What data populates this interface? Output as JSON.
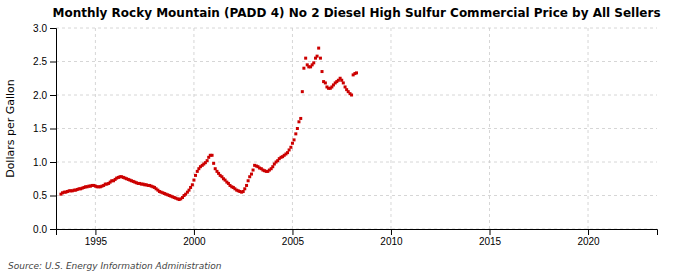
{
  "chart_data": {
    "type": "scatter",
    "title": "Monthly Rocky Mountain (PADD 4) No 2 Diesel High Sulfur Commercial Price by All Sellers",
    "ylabel": "Dollars per Gallon",
    "annotations": [
      "Source: U.S. Energy Information Administration"
    ],
    "color": "#cc0000",
    "marker": "square",
    "grid": true,
    "xlim": [
      1993,
      2023.5
    ],
    "ylim": [
      0,
      3
    ],
    "xticks": [
      1995,
      2000,
      2005,
      2010,
      2015,
      2020
    ],
    "yticks": [
      {
        "value": 0,
        "label": "0.0"
      },
      0.5,
      {
        "value": 1,
        "label": "1.0"
      },
      1.5,
      {
        "value": 2,
        "label": "2.0"
      },
      2.5,
      {
        "value": 3,
        "label": "3.0"
      }
    ],
    "x": [
      1993.25,
      1993.33,
      1993.42,
      1993.5,
      1993.58,
      1993.67,
      1993.75,
      1993.83,
      1993.92,
      1994,
      1994.08,
      1994.17,
      1994.25,
      1994.33,
      1994.42,
      1994.5,
      1994.58,
      1994.67,
      1994.75,
      1994.83,
      1994.92,
      1995,
      1995.08,
      1995.17,
      1995.25,
      1995.33,
      1995.42,
      1995.5,
      1995.58,
      1995.67,
      1995.75,
      1995.83,
      1995.92,
      1996,
      1996.08,
      1996.17,
      1996.25,
      1996.33,
      1996.42,
      1996.5,
      1996.58,
      1996.67,
      1996.75,
      1996.83,
      1996.92,
      1997,
      1997.08,
      1997.17,
      1997.25,
      1997.33,
      1997.42,
      1997.5,
      1997.58,
      1997.67,
      1997.75,
      1997.83,
      1997.92,
      1998,
      1998.08,
      1998.17,
      1998.25,
      1998.33,
      1998.42,
      1998.5,
      1998.58,
      1998.67,
      1998.75,
      1998.83,
      1998.92,
      1999,
      1999.08,
      1999.17,
      1999.25,
      1999.33,
      1999.42,
      1999.5,
      1999.58,
      1999.67,
      1999.75,
      1999.83,
      1999.92,
      2000,
      2000.08,
      2000.17,
      2000.25,
      2000.33,
      2000.42,
      2000.5,
      2000.58,
      2000.67,
      2000.75,
      2000.83,
      2000.92,
      2001,
      2001.08,
      2001.17,
      2001.25,
      2001.33,
      2001.42,
      2001.5,
      2001.58,
      2001.67,
      2001.75,
      2001.83,
      2001.92,
      2002,
      2002.08,
      2002.17,
      2002.25,
      2002.33,
      2002.42,
      2002.5,
      2002.58,
      2002.67,
      2002.75,
      2002.83,
      2002.92,
      2003,
      2003.08,
      2003.17,
      2003.25,
      2003.33,
      2003.42,
      2003.5,
      2003.58,
      2003.67,
      2003.75,
      2003.83,
      2003.92,
      2004,
      2004.08,
      2004.17,
      2004.25,
      2004.33,
      2004.42,
      2004.5,
      2004.58,
      2004.67,
      2004.75,
      2004.83,
      2004.92,
      2005,
      2005.08,
      2005.17,
      2005.25,
      2005.33,
      2005.42,
      2005.5,
      2005.58,
      2005.67,
      2005.75,
      2005.83,
      2005.92,
      2006,
      2006.08,
      2006.17,
      2006.25,
      2006.33,
      2006.42,
      2006.5,
      2006.58,
      2006.67,
      2006.75,
      2006.83,
      2006.92,
      2007,
      2007.08,
      2007.17,
      2007.25,
      2007.33,
      2007.42,
      2007.5,
      2007.58,
      2007.67,
      2007.75,
      2007.83,
      2007.92,
      2008,
      2008.08,
      2008.17,
      2008.25
    ],
    "values": [
      0.52,
      0.54,
      0.55,
      0.55,
      0.56,
      0.57,
      0.57,
      0.57,
      0.58,
      0.58,
      0.59,
      0.6,
      0.6,
      0.61,
      0.62,
      0.63,
      0.63,
      0.64,
      0.64,
      0.65,
      0.65,
      0.64,
      0.63,
      0.63,
      0.63,
      0.64,
      0.65,
      0.67,
      0.67,
      0.68,
      0.7,
      0.72,
      0.72,
      0.74,
      0.76,
      0.77,
      0.78,
      0.78,
      0.77,
      0.76,
      0.75,
      0.74,
      0.73,
      0.72,
      0.71,
      0.7,
      0.69,
      0.68,
      0.68,
      0.67,
      0.67,
      0.66,
      0.66,
      0.65,
      0.65,
      0.64,
      0.63,
      0.62,
      0.6,
      0.58,
      0.56,
      0.55,
      0.54,
      0.53,
      0.52,
      0.51,
      0.5,
      0.49,
      0.48,
      0.47,
      0.46,
      0.45,
      0.44,
      0.45,
      0.47,
      0.5,
      0.52,
      0.55,
      0.58,
      0.62,
      0.66,
      0.73,
      0.8,
      0.86,
      0.9,
      0.93,
      0.95,
      0.97,
      0.99,
      1.02,
      1.07,
      1.1,
      1.1,
      0.98,
      0.9,
      0.86,
      0.83,
      0.8,
      0.78,
      0.75,
      0.73,
      0.7,
      0.68,
      0.65,
      0.63,
      0.62,
      0.6,
      0.58,
      0.57,
      0.56,
      0.55,
      0.56,
      0.6,
      0.65,
      0.72,
      0.78,
      0.82,
      0.88,
      0.95,
      0.94,
      0.93,
      0.91,
      0.9,
      0.88,
      0.87,
      0.86,
      0.86,
      0.88,
      0.9,
      0.93,
      0.97,
      1.0,
      1.02,
      1.05,
      1.07,
      1.08,
      1.1,
      1.12,
      1.14,
      1.18,
      1.22,
      1.28,
      1.33,
      1.42,
      1.5,
      1.6,
      1.65,
      2.05,
      2.4,
      2.55,
      2.45,
      2.42,
      2.42,
      2.45,
      2.48,
      2.55,
      2.58,
      2.7,
      2.55,
      2.35,
      2.2,
      2.18,
      2.12,
      2.1,
      2.1,
      2.12,
      2.15,
      2.18,
      2.2,
      2.22,
      2.25,
      2.22,
      2.18,
      2.12,
      2.08,
      2.05,
      2.02,
      2.0,
      2.3,
      2.32,
      2.33
    ]
  }
}
